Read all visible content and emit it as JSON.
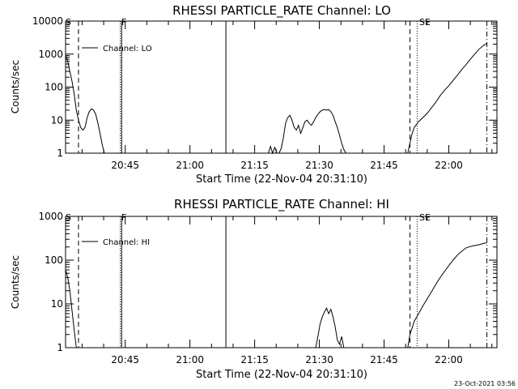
{
  "panels": [
    {
      "title": "RHESSI PARTICLE_RATE Channel: LO",
      "xlabel": "Start Time (22-Nov-04 20:31:10)",
      "ylabel": "Counts/sec",
      "legend": "Channel: LO",
      "yscale": "log",
      "ylim": [
        1,
        10000
      ],
      "ytick_values": [
        1,
        10,
        100,
        1000,
        10000
      ],
      "ytick_labels": [
        "1",
        "10",
        "100",
        "1000",
        "10000"
      ],
      "flags": [
        "S",
        "F",
        "SE"
      ]
    },
    {
      "title": "RHESSI PARTICLE_RATE Channel: HI",
      "xlabel": "Start Time (22-Nov-04 20:31:10)",
      "ylabel": "Counts/sec",
      "legend": "Channel: HI",
      "yscale": "log",
      "ylim": [
        1,
        1000
      ],
      "ytick_values": [
        1,
        10,
        100,
        1000
      ],
      "ytick_labels": [
        "1",
        "10",
        "100",
        "1000"
      ],
      "flags": [
        "S",
        "F",
        "SE"
      ]
    }
  ],
  "xtick_labels": [
    "20:45",
    "21:00",
    "21:15",
    "21:30",
    "21:45",
    "22:00"
  ],
  "timestamp": "23-Oct-2021 03:56",
  "chart_data": [
    {
      "type": "line",
      "title": "RHESSI PARTICLE_RATE Channel: LO",
      "xlabel": "Start Time (22-Nov-04 20:31:10)",
      "ylabel": "Counts/sec",
      "xlim": [
        "20:31:10",
        "22:11:10"
      ],
      "ylim": [
        1,
        10000
      ],
      "yscale": "log",
      "grid": false,
      "legend": "top-left",
      "vlines": [
        {
          "t": "20:34:10",
          "style": "dashed"
        },
        {
          "t": "20:43:50",
          "style": "dotted"
        },
        {
          "t": "20:44:10",
          "style": "solid"
        },
        {
          "t": "21:08:20",
          "style": "solid"
        },
        {
          "t": "21:51:00",
          "style": "dashed"
        },
        {
          "t": "21:52:40",
          "style": "dotted"
        },
        {
          "t": "22:08:50",
          "style": "dashdot"
        }
      ],
      "series": [
        {
          "name": "Channel: LO",
          "segments": [
            [
              [
                "20:31:10",
                900
              ],
              [
                "20:31:40",
                600
              ],
              [
                "20:32:10",
                300
              ],
              [
                "20:32:40",
                150
              ],
              [
                "20:33:10",
                60
              ],
              [
                "20:33:40",
                20
              ],
              [
                "20:34:10",
                10
              ],
              [
                "20:34:40",
                6
              ],
              [
                "20:35:10",
                5
              ],
              [
                "20:35:40",
                6
              ],
              [
                "20:36:10",
                12
              ],
              [
                "20:36:40",
                18
              ],
              [
                "20:37:10",
                22
              ],
              [
                "20:37:40",
                20
              ],
              [
                "20:38:10",
                15
              ],
              [
                "20:38:40",
                8
              ],
              [
                "20:39:10",
                4
              ],
              [
                "20:39:40",
                1.8
              ],
              [
                "20:40:10",
                1
              ]
            ],
            [
              [
                "21:18:10",
                1
              ],
              [
                "21:18:40",
                1.6
              ],
              [
                "21:19:10",
                1
              ],
              [
                "21:19:40",
                1.5
              ],
              [
                "21:20:10",
                1
              ]
            ],
            [
              [
                "21:20:40",
                1
              ],
              [
                "21:21:10",
                1.4
              ],
              [
                "21:21:40",
                3
              ],
              [
                "21:22:10",
                8
              ],
              [
                "21:22:40",
                12
              ],
              [
                "21:23:10",
                14
              ],
              [
                "21:23:40",
                10
              ],
              [
                "21:24:10",
                6
              ],
              [
                "21:24:40",
                5
              ],
              [
                "21:25:10",
                7
              ],
              [
                "21:25:40",
                4
              ],
              [
                "21:26:10",
                6
              ],
              [
                "21:26:40",
                9
              ],
              [
                "21:27:10",
                10
              ],
              [
                "21:27:40",
                8
              ],
              [
                "21:28:10",
                7
              ],
              [
                "21:28:40",
                9
              ],
              [
                "21:29:10",
                12
              ],
              [
                "21:29:40",
                15
              ],
              [
                "21:30:10",
                18
              ],
              [
                "21:30:40",
                20
              ],
              [
                "21:31:10",
                21
              ],
              [
                "21:31:40",
                20
              ],
              [
                "21:32:10",
                21
              ],
              [
                "21:32:40",
                18
              ],
              [
                "21:33:10",
                14
              ],
              [
                "21:33:40",
                9
              ],
              [
                "21:34:10",
                6
              ],
              [
                "21:34:40",
                3.5
              ],
              [
                "21:35:10",
                2
              ],
              [
                "21:35:40",
                1.3
              ],
              [
                "21:36:10",
                1
              ]
            ],
            [
              [
                "21:50:30",
                1
              ],
              [
                "21:51:00",
                2
              ],
              [
                "21:51:30",
                4
              ],
              [
                "21:52:00",
                6
              ],
              [
                "21:53:00",
                9
              ],
              [
                "21:54:00",
                12
              ],
              [
                "21:55:00",
                16
              ],
              [
                "21:56:00",
                24
              ],
              [
                "21:57:00",
                35
              ],
              [
                "21:58:00",
                55
              ],
              [
                "21:59:00",
                80
              ],
              [
                "22:00:00",
                110
              ],
              [
                "22:01:00",
                160
              ],
              [
                "22:02:00",
                230
              ],
              [
                "22:03:00",
                340
              ],
              [
                "22:04:00",
                480
              ],
              [
                "22:05:00",
                700
              ],
              [
                "22:06:00",
                1000
              ],
              [
                "22:07:00",
                1400
              ],
              [
                "22:08:00",
                1800
              ],
              [
                "22:08:50",
                2100
              ]
            ]
          ]
        }
      ]
    },
    {
      "type": "line",
      "title": "RHESSI PARTICLE_RATE Channel: HI",
      "xlabel": "Start Time (22-Nov-04 20:31:10)",
      "ylabel": "Counts/sec",
      "xlim": [
        "20:31:10",
        "22:11:10"
      ],
      "ylim": [
        1,
        1000
      ],
      "yscale": "log",
      "grid": false,
      "legend": "top-left",
      "vlines": [
        {
          "t": "20:34:10",
          "style": "dashed"
        },
        {
          "t": "20:43:50",
          "style": "dotted"
        },
        {
          "t": "20:44:10",
          "style": "solid"
        },
        {
          "t": "21:08:20",
          "style": "solid"
        },
        {
          "t": "21:51:00",
          "style": "dashed"
        },
        {
          "t": "21:52:40",
          "style": "dotted"
        },
        {
          "t": "22:08:50",
          "style": "dashdot"
        }
      ],
      "series": [
        {
          "name": "Channel: HI",
          "segments": [
            [
              [
                "20:31:10",
                60
              ],
              [
                "20:31:40",
                40
              ],
              [
                "20:32:10",
                20
              ],
              [
                "20:32:40",
                7
              ],
              [
                "20:33:10",
                2.5
              ],
              [
                "20:33:40",
                1
              ]
            ],
            [
              [
                "21:29:10",
                1
              ],
              [
                "21:29:40",
                1.8
              ],
              [
                "21:30:10",
                3.5
              ],
              [
                "21:30:40",
                5
              ],
              [
                "21:31:10",
                6.5
              ],
              [
                "21:31:40",
                8
              ],
              [
                "21:32:10",
                6
              ],
              [
                "21:32:40",
                7.5
              ],
              [
                "21:33:10",
                5
              ],
              [
                "21:33:40",
                3
              ],
              [
                "21:34:10",
                1.5
              ],
              [
                "21:34:40",
                1.2
              ],
              [
                "21:35:10",
                1.8
              ],
              [
                "21:35:40",
                1
              ]
            ],
            [
              [
                "21:50:30",
                1
              ],
              [
                "21:51:00",
                2
              ],
              [
                "21:52:00",
                4
              ],
              [
                "21:53:00",
                6
              ],
              [
                "21:54:00",
                9
              ],
              [
                "21:55:00",
                13
              ],
              [
                "21:56:00",
                19
              ],
              [
                "21:57:00",
                28
              ],
              [
                "21:58:00",
                40
              ],
              [
                "21:59:00",
                55
              ],
              [
                "22:00:00",
                75
              ],
              [
                "22:01:00",
                100
              ],
              [
                "22:02:00",
                130
              ],
              [
                "22:03:00",
                160
              ],
              [
                "22:04:00",
                190
              ],
              [
                "22:05:00",
                205
              ],
              [
                "22:06:00",
                215
              ],
              [
                "22:07:00",
                225
              ],
              [
                "22:08:00",
                240
              ],
              [
                "22:08:50",
                250
              ]
            ]
          ]
        }
      ]
    }
  ]
}
